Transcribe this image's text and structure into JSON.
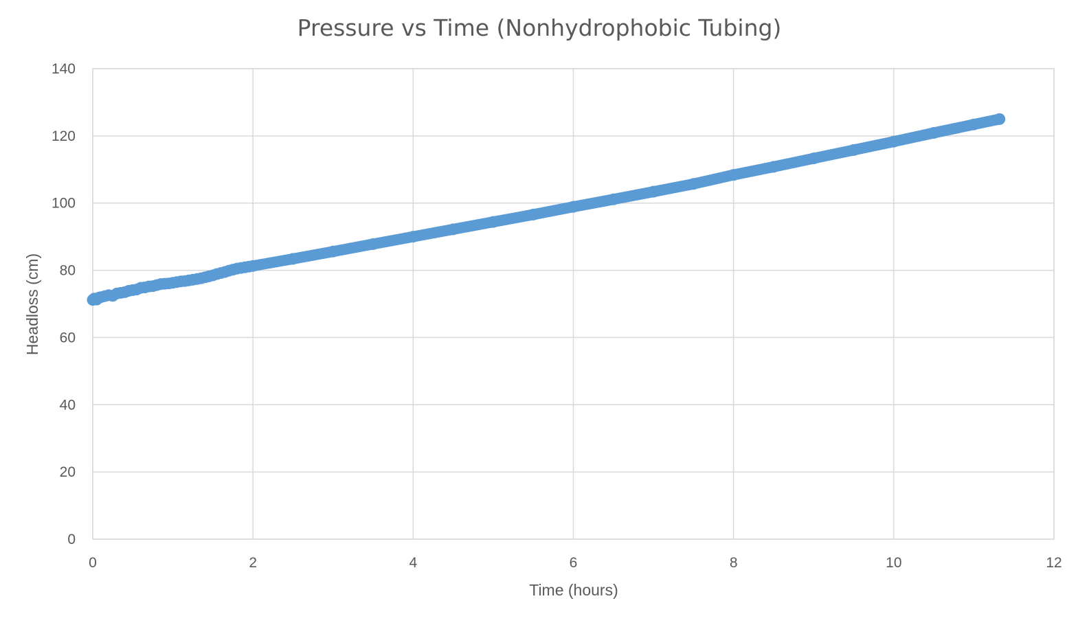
{
  "chart_data": {
    "type": "scatter",
    "title": "Pressure vs Time (Nonhydrophobic Tubing)",
    "xlabel": "Time (hours)",
    "ylabel": "Headloss (cm)",
    "xlim": [
      0,
      12
    ],
    "ylim": [
      0,
      140
    ],
    "xticks": [
      0,
      2,
      4,
      6,
      8,
      10,
      12
    ],
    "yticks": [
      0,
      20,
      40,
      60,
      80,
      100,
      120,
      140
    ],
    "grid": true,
    "legend": "none",
    "series_color": "#5b9bd5",
    "series": [
      {
        "points": [
          [
            0.0,
            71.2
          ],
          [
            0.02,
            71.6
          ],
          [
            0.05,
            71.3
          ],
          [
            0.08,
            71.9
          ],
          [
            0.1,
            72.0
          ],
          [
            0.15,
            72.3
          ],
          [
            0.2,
            72.6
          ],
          [
            0.25,
            72.4
          ],
          [
            0.3,
            73.1
          ],
          [
            0.35,
            73.3
          ],
          [
            0.4,
            73.5
          ],
          [
            0.45,
            73.9
          ],
          [
            0.5,
            74.1
          ],
          [
            0.55,
            74.3
          ],
          [
            0.6,
            74.8
          ],
          [
            0.65,
            74.9
          ],
          [
            0.7,
            75.2
          ],
          [
            0.75,
            75.3
          ],
          [
            0.8,
            75.6
          ],
          [
            0.85,
            75.9
          ],
          [
            0.9,
            76.0
          ],
          [
            0.95,
            76.1
          ],
          [
            1.0,
            76.3
          ],
          [
            1.05,
            76.5
          ],
          [
            1.1,
            76.7
          ],
          [
            1.15,
            76.8
          ],
          [
            1.2,
            77.0
          ],
          [
            1.25,
            77.2
          ],
          [
            1.3,
            77.4
          ],
          [
            1.35,
            77.6
          ],
          [
            1.4,
            77.9
          ],
          [
            1.45,
            78.2
          ],
          [
            1.5,
            78.5
          ],
          [
            1.55,
            78.9
          ],
          [
            1.6,
            79.2
          ],
          [
            1.65,
            79.5
          ],
          [
            1.7,
            79.9
          ],
          [
            1.75,
            80.2
          ],
          [
            1.8,
            80.5
          ],
          [
            1.85,
            80.7
          ],
          [
            1.9,
            80.9
          ],
          [
            1.95,
            81.1
          ],
          [
            2.0,
            81.3
          ],
          [
            2.5,
            83.4
          ],
          [
            3.0,
            85.6
          ],
          [
            3.5,
            87.8
          ],
          [
            4.0,
            90.0
          ],
          [
            4.5,
            92.2
          ],
          [
            5.0,
            94.4
          ],
          [
            5.5,
            96.6
          ],
          [
            6.0,
            98.9
          ],
          [
            6.5,
            101.1
          ],
          [
            7.0,
            103.4
          ],
          [
            7.5,
            105.7
          ],
          [
            8.0,
            108.4
          ],
          [
            8.5,
            110.8
          ],
          [
            9.0,
            113.3
          ],
          [
            9.5,
            115.8
          ],
          [
            10.0,
            118.3
          ],
          [
            10.5,
            120.9
          ],
          [
            11.0,
            123.4
          ],
          [
            11.32,
            125.0
          ]
        ]
      }
    ]
  }
}
